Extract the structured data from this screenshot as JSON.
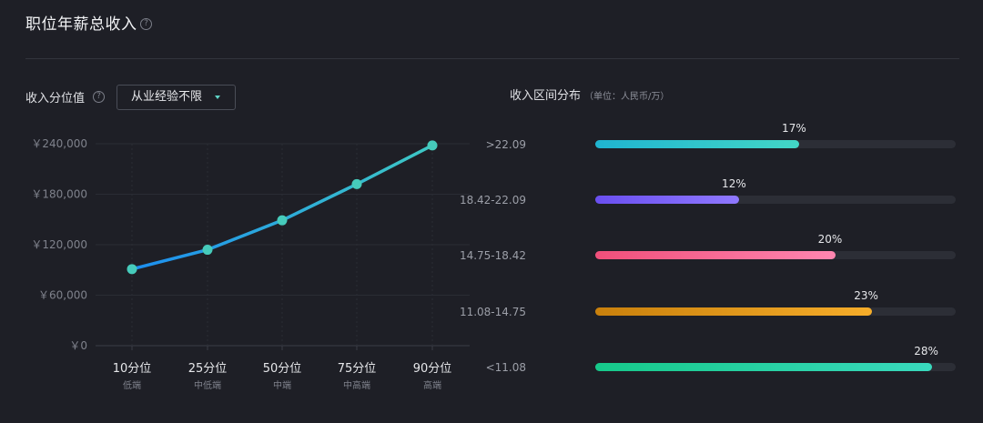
{
  "header": {
    "title": "职位年薪总收入",
    "help_icon": "?"
  },
  "percentile_panel": {
    "label": "收入分位值",
    "help_icon": "?",
    "experience_select": {
      "selected": "从业经验不限"
    }
  },
  "distribution_panel": {
    "title": "收入区间分布",
    "unit": "（单位：人民币/万）"
  },
  "chart_data": [
    {
      "type": "line",
      "title": "",
      "x": [
        "10分位",
        "25分位",
        "50分位",
        "75分位",
        "90分位"
      ],
      "x_sublabels": [
        "低端",
        "中低端",
        "中端",
        "中高端",
        "高端"
      ],
      "series": [
        {
          "values": [
            91000,
            114000,
            149000,
            192000,
            238000
          ]
        }
      ],
      "yticks": [
        "￥240,000",
        "￥180,000",
        "￥120,000",
        "￥60,000",
        "￥0"
      ],
      "ytick_values": [
        240000,
        180000,
        120000,
        60000,
        0
      ],
      "ylim": [
        0,
        240000
      ],
      "grid": true,
      "colors": {
        "line_start": "#1c8ef0",
        "line_end": "#3ec8c4",
        "marker": "#46cbbb"
      }
    },
    {
      "type": "bar",
      "orientation": "horizontal",
      "categories": [
        ">22.09",
        "18.42-22.09",
        "14.75-18.42",
        "11.08-14.75",
        "<11.08"
      ],
      "values": [
        17,
        12,
        20,
        23,
        28
      ],
      "value_labels": [
        "17%",
        "12%",
        "20%",
        "23%",
        "28%"
      ],
      "xlim": [
        0,
        30
      ],
      "colors": [
        [
          "#1fb4d0",
          "#43d6c6"
        ],
        [
          "#6a4ff0",
          "#8f78ff"
        ],
        [
          "#f04f7a",
          "#ff86b0"
        ],
        [
          "#c9800c",
          "#f6ad2a"
        ],
        [
          "#16c98a",
          "#39d9bd"
        ]
      ]
    }
  ]
}
